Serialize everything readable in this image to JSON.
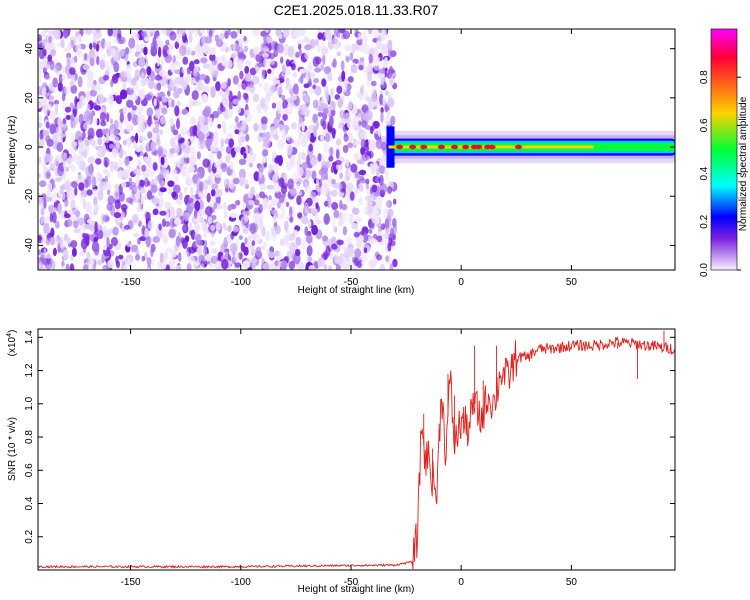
{
  "title": "C2E1.2025.018.11.33.R07",
  "colors": {
    "snr_line": "#e0201b",
    "speckle": "#7a22e0",
    "axis": "#000000"
  },
  "chart_data": [
    {
      "type": "heatmap",
      "xlabel": "Height of straight line (km)",
      "ylabel": "Frequency (Hz)",
      "xlim": [
        -192,
        97
      ],
      "ylim": [
        -50,
        48
      ],
      "xticks": [
        -150,
        -100,
        -50,
        0,
        50
      ],
      "yticks": [
        -40,
        -20,
        0,
        20,
        40
      ],
      "noise_region_x": [
        -192,
        -32
      ],
      "signal_band": {
        "x_range": [
          -33,
          97
        ],
        "center_freq": 0,
        "half_width_hz": 3,
        "peak_heights": [
          -28,
          -22,
          -17,
          -9,
          -3,
          2,
          6,
          8,
          12,
          14,
          26
        ]
      },
      "colorbar": {
        "label": "Normalized spectral amplitude",
        "range": [
          0,
          1
        ],
        "ticks": [
          "0.0",
          "0.2",
          "0.4",
          "0.6",
          "0.8"
        ],
        "stops": [
          "#ff00ff",
          "#ff0033",
          "#ffd200",
          "#00ff33",
          "#00ffff",
          "#0000ff",
          "#7a22e0",
          "#f7f0ff"
        ]
      }
    },
    {
      "type": "line",
      "xlabel": "Height of straight line (km)",
      "ylabel": "SNR (10 * v/v)",
      "yscale_label": "(x10",
      "yscale_exp": "4",
      "xlim": [
        -192,
        97
      ],
      "ylim": [
        0,
        1.45
      ],
      "xticks": [
        -150,
        -100,
        -50,
        0,
        50
      ],
      "yticks": [
        "0.2",
        "0.4",
        "0.6",
        "0.8",
        "1.0",
        "1.2",
        "1.4"
      ],
      "ytick_values": [
        0.2,
        0.4,
        0.6,
        0.8,
        1.0,
        1.2,
        1.4
      ],
      "series": [
        {
          "x": [
            -192,
            -100,
            -30,
            -22,
            -20,
            -19,
            -18,
            -17,
            -16,
            -15,
            -13,
            -11,
            -9,
            -7,
            -5,
            -3,
            0,
            3,
            6,
            9,
            12,
            15,
            18,
            21,
            25,
            30,
            35,
            40,
            50,
            60,
            70,
            80,
            90,
            97
          ],
          "y": [
            0.02,
            0.02,
            0.03,
            0.05,
            0.2,
            0.5,
            0.9,
            0.75,
            0.65,
            0.7,
            0.55,
            0.45,
            1.1,
            0.7,
            1.15,
            0.75,
            0.9,
            0.85,
            1.0,
            0.9,
            1.05,
            1.0,
            1.2,
            1.15,
            1.28,
            1.28,
            1.33,
            1.33,
            1.35,
            1.35,
            1.37,
            1.36,
            1.34,
            1.33
          ],
          "peaks": [
            [
              -17,
              0.94
            ],
            [
              -13,
              0.73
            ],
            [
              -10,
              0.88
            ],
            [
              -6,
              1.18
            ],
            [
              -3,
              1.05
            ],
            [
              1,
              0.98
            ],
            [
              6,
              1.35
            ],
            [
              10,
              1.14
            ],
            [
              16,
              1.35
            ],
            [
              19,
              1.16
            ],
            [
              23,
              1.3
            ],
            [
              71,
              1.33
            ],
            [
              80,
              1.15
            ],
            [
              88,
              1.38
            ],
            [
              92,
              1.44
            ]
          ]
        }
      ]
    }
  ]
}
